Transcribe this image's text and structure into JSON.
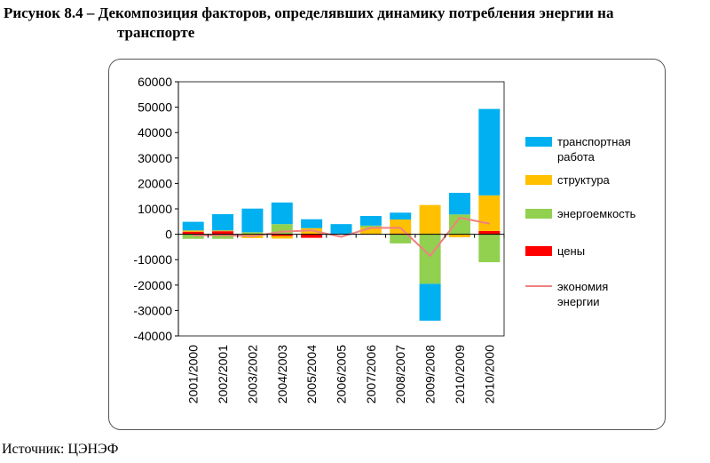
{
  "figure": {
    "title_line1": "Рисунок 8.4 – Декомпозиция факторов, определявших динамику потребления энергии на",
    "title_line2": "транспорте",
    "source": "Источник: ЦЭНЭФ"
  },
  "chart_data": {
    "type": "bar",
    "stacked": true,
    "title": "Рисунок 8.4 – Декомпозиция факторов, определявших динамику потребления энергии на транспорте",
    "xlabel": "",
    "ylabel": "",
    "ylim": [
      -40000,
      60000
    ],
    "yticks": [
      60000,
      50000,
      40000,
      30000,
      20000,
      10000,
      0,
      -10000,
      -20000,
      -30000,
      -40000
    ],
    "ytick_labels": [
      "60000",
      "50000",
      "40000",
      "30000",
      "20000",
      "10000",
      "0",
      "-10000",
      "-20000",
      "-30000",
      "-40000"
    ],
    "grid": false,
    "legend_position": "right",
    "categories": [
      "2001/2000",
      "2002/2001",
      "2003/2002",
      "2004/2003",
      "2005/2004",
      "2006/2005",
      "2007/2006",
      "2008/2007",
      "2009/2008",
      "2010/2009",
      "2010/2000"
    ],
    "series": [
      {
        "name": "цены",
        "color": "#ff0000",
        "values": [
          1000,
          1200,
          0,
          -700,
          -1400,
          0,
          0,
          300,
          0,
          0,
          1300
        ]
      },
      {
        "name": "структура",
        "color": "#ffc000",
        "values": [
          500,
          300,
          -1500,
          -1000,
          2400,
          0,
          2500,
          5500,
          11500,
          -1200,
          14000
        ]
      },
      {
        "name": "энергоемкость",
        "color": "#92d050",
        "values": [
          -1800,
          -1800,
          800,
          4000,
          0,
          0,
          900,
          -3600,
          -19500,
          7800,
          -11000
        ]
      },
      {
        "name": "транспортная работа",
        "color": "#00b0f0",
        "values": [
          3400,
          6400,
          9300,
          8500,
          3500,
          4000,
          3800,
          2700,
          -14500,
          8500,
          34000
        ]
      },
      {
        "name": "экономия энергии",
        "type": "line",
        "color": "#f08080",
        "values": [
          -500,
          -300,
          -800,
          1000,
          1500,
          -1000,
          2500,
          2500,
          -8500,
          6500,
          4200
        ]
      }
    ],
    "legend": [
      {
        "label": "транспортная работа",
        "color": "#00b0f0",
        "kind": "box"
      },
      {
        "label": "структура",
        "color": "#ffc000",
        "kind": "box"
      },
      {
        "label": "энергоемкость",
        "color": "#92d050",
        "kind": "box"
      },
      {
        "label": "цены",
        "color": "#ff0000",
        "kind": "box"
      },
      {
        "label": "экономия энергии",
        "color": "#f08080",
        "kind": "line"
      }
    ]
  }
}
